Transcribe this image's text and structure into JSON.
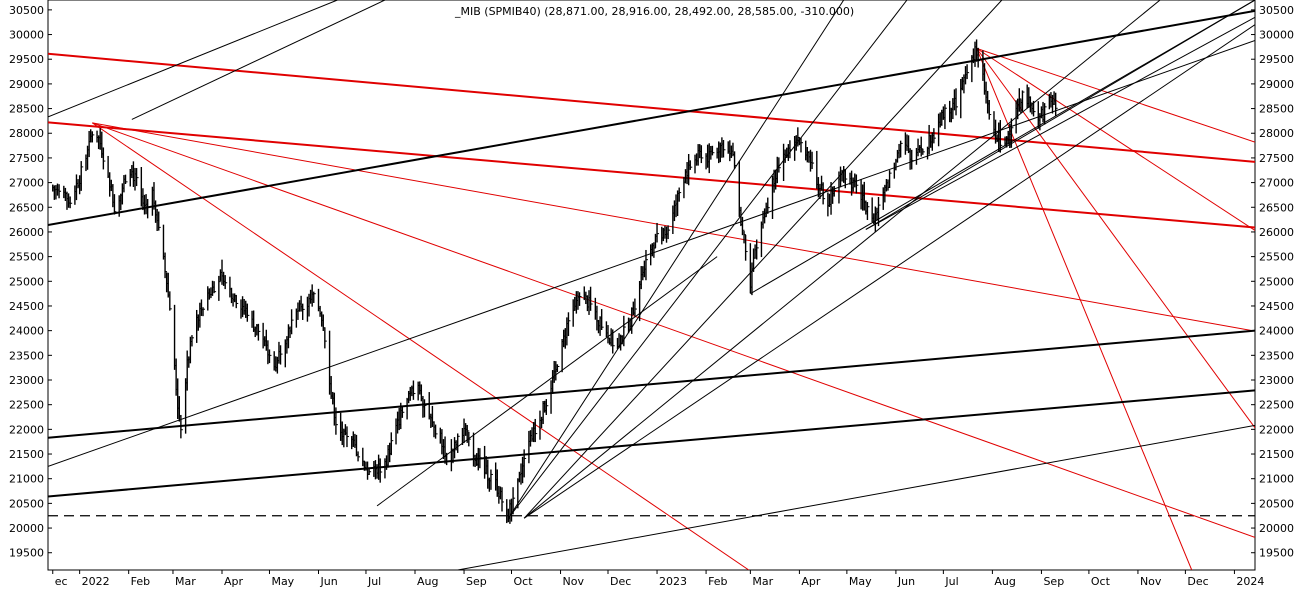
{
  "chart_data": {
    "type": "ohlc",
    "title": "_MIB (SPMIB40) (28,871.00, 28,916.00, 28,492.00, 28,585.00, -310.000)",
    "y_ticks": [
      19500,
      20000,
      20500,
      21000,
      21500,
      22000,
      22500,
      23000,
      23500,
      24000,
      24500,
      25000,
      25500,
      26000,
      26500,
      27000,
      27500,
      28000,
      28500,
      29000,
      29500,
      30000,
      30500
    ],
    "ylim": [
      19150,
      30700
    ],
    "x_labels": [
      "ec",
      "2022",
      "Feb",
      "Mar",
      "Apr",
      "May",
      "Jun",
      "Jul",
      "Aug",
      "Sep",
      "Oct",
      "Nov",
      "Dec",
      "2023",
      "Feb",
      "Mar",
      "Apr",
      "May",
      "Jun",
      "Jul",
      "Aug",
      "Sep",
      "Oct",
      "Nov",
      "Dec",
      "2024"
    ],
    "x_label_days": [
      0,
      17,
      48,
      76,
      107,
      137,
      168,
      198,
      229,
      260,
      290,
      321,
      351,
      382,
      413,
      441,
      472,
      502,
      533,
      563,
      594,
      625,
      655,
      686,
      716,
      747
    ],
    "x_range_days": [
      -3,
      760
    ],
    "close_path": [
      [
        0,
        26900
      ],
      [
        5,
        26750
      ],
      [
        10,
        26600
      ],
      [
        17,
        27100
      ],
      [
        22,
        27600
      ],
      [
        26,
        28150
      ],
      [
        30,
        27800
      ],
      [
        35,
        27200
      ],
      [
        40,
        26300
      ],
      [
        44,
        26900
      ],
      [
        48,
        27350
      ],
      [
        53,
        27000
      ],
      [
        58,
        26500
      ],
      [
        63,
        26800
      ],
      [
        66,
        26300
      ],
      [
        69,
        25600
      ],
      [
        72,
        25000
      ],
      [
        75,
        24200
      ],
      [
        77,
        23200
      ],
      [
        79,
        22500
      ],
      [
        81,
        22100
      ],
      [
        85,
        23300
      ],
      [
        90,
        24200
      ],
      [
        95,
        24500
      ],
      [
        100,
        24800
      ],
      [
        105,
        25100
      ],
      [
        110,
        24900
      ],
      [
        115,
        24700
      ],
      [
        120,
        24500
      ],
      [
        125,
        24200
      ],
      [
        130,
        24000
      ],
      [
        135,
        23600
      ],
      [
        140,
        23300
      ],
      [
        145,
        23700
      ],
      [
        150,
        24100
      ],
      [
        155,
        24400
      ],
      [
        160,
        24500
      ],
      [
        165,
        24700
      ],
      [
        170,
        24300
      ],
      [
        173,
        23700
      ],
      [
        176,
        22700
      ],
      [
        180,
        22000
      ],
      [
        185,
        21800
      ],
      [
        190,
        21700
      ],
      [
        195,
        21400
      ],
      [
        200,
        21100
      ],
      [
        205,
        21200
      ],
      [
        210,
        21300
      ],
      [
        215,
        21800
      ],
      [
        220,
        22300
      ],
      [
        225,
        22600
      ],
      [
        230,
        22900
      ],
      [
        235,
        22500
      ],
      [
        240,
        22100
      ],
      [
        245,
        21800
      ],
      [
        250,
        21400
      ],
      [
        255,
        21700
      ],
      [
        260,
        22000
      ],
      [
        265,
        21600
      ],
      [
        270,
        21300
      ],
      [
        275,
        21100
      ],
      [
        280,
        20900
      ],
      [
        284,
        20550
      ],
      [
        288,
        20300
      ],
      [
        292,
        20600
      ],
      [
        296,
        21100
      ],
      [
        300,
        21600
      ],
      [
        305,
        22000
      ],
      [
        310,
        22400
      ],
      [
        315,
        22800
      ],
      [
        320,
        23400
      ],
      [
        325,
        24100
      ],
      [
        330,
        24500
      ],
      [
        335,
        24700
      ],
      [
        340,
        24500
      ],
      [
        345,
        24200
      ],
      [
        350,
        24000
      ],
      [
        355,
        23700
      ],
      [
        360,
        23900
      ],
      [
        365,
        24200
      ],
      [
        370,
        24800
      ],
      [
        375,
        25500
      ],
      [
        380,
        25800
      ],
      [
        385,
        25900
      ],
      [
        390,
        26100
      ],
      [
        395,
        26700
      ],
      [
        400,
        27200
      ],
      [
        405,
        27400
      ],
      [
        410,
        27600
      ],
      [
        415,
        27500
      ],
      [
        420,
        27700
      ],
      [
        425,
        27800
      ],
      [
        430,
        27600
      ],
      [
        433,
        26600
      ],
      [
        436,
        26000
      ],
      [
        439,
        25500
      ],
      [
        441,
        25000
      ],
      [
        445,
        25700
      ],
      [
        450,
        26300
      ],
      [
        455,
        27000
      ],
      [
        460,
        27500
      ],
      [
        465,
        27700
      ],
      [
        470,
        27900
      ],
      [
        475,
        27600
      ],
      [
        480,
        27300
      ],
      [
        485,
        26900
      ],
      [
        490,
        26600
      ],
      [
        495,
        26900
      ],
      [
        500,
        27200
      ],
      [
        505,
        27000
      ],
      [
        510,
        26800
      ],
      [
        514,
        26500
      ],
      [
        518,
        26200
      ],
      [
        522,
        26500
      ],
      [
        527,
        26900
      ],
      [
        532,
        27400
      ],
      [
        537,
        27900
      ],
      [
        542,
        27500
      ],
      [
        547,
        27800
      ],
      [
        552,
        27700
      ],
      [
        557,
        28000
      ],
      [
        562,
        28300
      ],
      [
        567,
        28500
      ],
      [
        572,
        28700
      ],
      [
        576,
        29100
      ],
      [
        580,
        29400
      ],
      [
        584,
        29700
      ],
      [
        587,
        29300
      ],
      [
        590,
        28700
      ],
      [
        594,
        28100
      ],
      [
        598,
        27900
      ],
      [
        602,
        27800
      ],
      [
        606,
        28200
      ],
      [
        610,
        28500
      ],
      [
        614,
        28800
      ],
      [
        618,
        28600
      ],
      [
        622,
        28200
      ],
      [
        626,
        28400
      ],
      [
        630,
        28700
      ],
      [
        634,
        28585
      ]
    ],
    "trendlines": [
      {
        "color": "red",
        "from": [
          -3,
          29610
        ],
        "to": [
          760,
          27420
        ]
      },
      {
        "color": "red",
        "from": [
          -3,
          28220
        ],
        "to": [
          760,
          26090
        ]
      },
      {
        "color": "red",
        "from": [
          25,
          28210
        ],
        "to": [
          760,
          23990
        ]
      },
      {
        "color": "red",
        "from": [
          25,
          28210
        ],
        "to": [
          760,
          19810
        ]
      },
      {
        "color": "red",
        "from": [
          25,
          28210
        ],
        "to": [
          440,
          19150
        ]
      },
      {
        "color": "red",
        "from": [
          584,
          29720
        ],
        "to": [
          760,
          22030
        ]
      },
      {
        "color": "red",
        "from": [
          584,
          29720
        ],
        "to": [
          720,
          19150
        ]
      },
      {
        "color": "red",
        "from": [
          584,
          29720
        ],
        "to": [
          760,
          26030
        ]
      },
      {
        "color": "red",
        "from": [
          584,
          29720
        ],
        "to": [
          760,
          27820
        ]
      },
      {
        "color": "black",
        "from": [
          -3,
          26140
        ],
        "to": [
          760,
          30480
        ]
      },
      {
        "color": "black",
        "from": [
          -3,
          21830
        ],
        "to": [
          760,
          24000
        ]
      },
      {
        "color": "black",
        "from": [
          -3,
          20640
        ],
        "to": [
          760,
          22790
        ]
      },
      {
        "color": "black",
        "from": [
          -3,
          21250
        ],
        "to": [
          760,
          29880
        ]
      },
      {
        "color": "black",
        "from": [
          -3,
          28330
        ],
        "to": [
          180,
          30700
        ]
      },
      {
        "color": "black",
        "from": [
          50,
          28280
        ],
        "to": [
          210,
          30700
        ]
      },
      {
        "color": "black",
        "from": [
          256,
          19150
        ],
        "to": [
          760,
          22080
        ]
      },
      {
        "color": "black",
        "from": [
          205,
          20450
        ],
        "to": [
          420,
          25500
        ]
      },
      {
        "color": "black",
        "from": [
          288,
          20200
        ],
        "to": [
          500,
          30700
        ]
      },
      {
        "color": "black",
        "from": [
          288,
          20200
        ],
        "to": [
          540,
          30700
        ]
      },
      {
        "color": "black",
        "from": [
          298,
          20200
        ],
        "to": [
          600,
          30700
        ]
      },
      {
        "color": "black",
        "from": [
          298,
          20200
        ],
        "to": [
          700,
          30700
        ]
      },
      {
        "color": "black",
        "from": [
          298,
          20200
        ],
        "to": [
          760,
          30200
        ]
      },
      {
        "color": "black",
        "from": [
          441,
          24750
        ],
        "to": [
          760,
          30700
        ]
      },
      {
        "color": "black",
        "from": [
          514,
          26050
        ],
        "to": [
          760,
          30700
        ]
      },
      {
        "color": "black",
        "from": [
          514,
          26050
        ],
        "to": [
          760,
          30350
        ]
      }
    ],
    "support_line": {
      "value": 20250,
      "style": "dashed"
    },
    "grid": false
  }
}
